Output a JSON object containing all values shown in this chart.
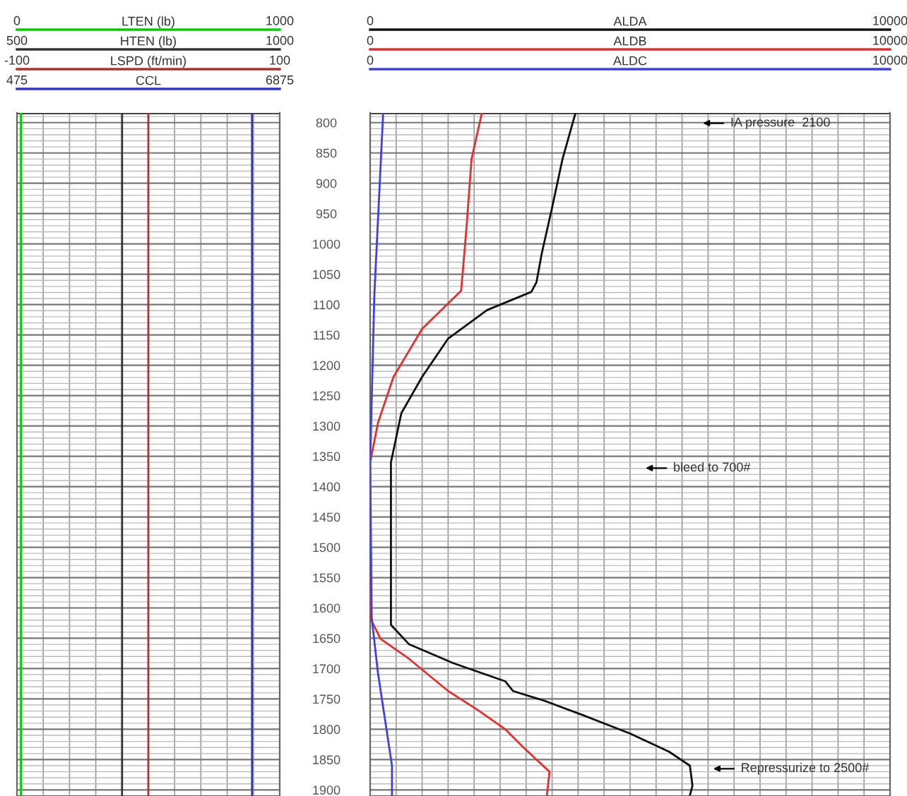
{
  "chart_data": [
    {
      "type": "line",
      "orientation": "horizontal",
      "grid": true,
      "tick_labels": "x",
      "ylim": [
        1910,
        784
      ],
      "yticks": [
        800,
        850,
        900,
        950,
        1000,
        1050,
        1100,
        1150,
        1200,
        1250,
        1300,
        1350,
        1400,
        1450,
        1500,
        1550,
        1600,
        1650,
        1700,
        1750,
        1800,
        1850,
        1900
      ],
      "xlim": [
        0,
        1000
      ],
      "xticks": [
        0,
        {
          "value": 100,
          "label": null
        },
        {
          "value": 200,
          "label": null
        },
        {
          "value": 300,
          "label": null
        },
        {
          "value": 400,
          "label": null
        },
        {
          "value": 500,
          "label": null
        },
        {
          "value": 600,
          "label": null
        },
        {
          "value": 700,
          "label": null
        },
        {
          "value": 800,
          "label": null
        },
        {
          "value": 900,
          "label": null
        },
        1000
      ],
      "series": [
        {
          "name": "LTEN (lb)",
          "color": "#00cc00",
          "x": [
            784,
            1910
          ],
          "values": [
            15,
            15
          ]
        }
      ]
    },
    {
      "type": "line",
      "orientation": "horizontal",
      "tick_labels": "x",
      "ylim": [
        1910,
        784
      ],
      "xlim": [
        500,
        1000
      ],
      "xticks": [
        500,
        1000
      ],
      "series": [
        {
          "name": "HTEN (lb)",
          "color": "#333333",
          "x": [
            784,
            1910
          ],
          "values": [
            700,
            700
          ]
        }
      ]
    },
    {
      "type": "line",
      "orientation": "horizontal",
      "tick_labels": "x",
      "ylim": [
        1910,
        784
      ],
      "xlim": [
        -100,
        100
      ],
      "xticks": [
        -100,
        100
      ],
      "series": [
        {
          "name": "LSPD (ft/min)",
          "color": "#b03030",
          "x": [
            784,
            1910
          ],
          "values": [
            0,
            0
          ]
        }
      ]
    },
    {
      "type": "line",
      "orientation": "horizontal",
      "tick_labels": "x",
      "ylim": [
        1910,
        784
      ],
      "xlim": [
        475,
        6875
      ],
      "xticks": [
        475,
        6875
      ],
      "series": [
        {
          "name": "CCL",
          "color": "#3030d0",
          "x": [
            784,
            1910
          ],
          "values": [
            6200,
            6200
          ]
        }
      ]
    },
    {
      "type": "line",
      "orientation": "horizontal",
      "grid": true,
      "ylim": [
        1910,
        784
      ],
      "yticks": [
        800,
        850,
        900,
        950,
        1000,
        1050,
        1100,
        1150,
        1200,
        1250,
        1300,
        1350,
        1400,
        1450,
        1500,
        1550,
        1600,
        1650,
        1700,
        1750,
        1800,
        1850,
        1900
      ],
      "xlim": [
        0,
        10000
      ],
      "xticks": [
        0,
        {
          "value": 500,
          "label": null
        },
        {
          "value": 1000,
          "label": null
        },
        {
          "value": 1500,
          "label": null
        },
        {
          "value": 2000,
          "label": null
        },
        {
          "value": 2500,
          "label": null
        },
        {
          "value": 3000,
          "label": null
        },
        {
          "value": 3500,
          "label": null
        },
        {
          "value": 4000,
          "label": null
        },
        {
          "value": 4500,
          "label": null
        },
        {
          "value": 5000,
          "label": null
        },
        {
          "value": 5500,
          "label": null
        },
        {
          "value": 6000,
          "label": null
        },
        {
          "value": 6500,
          "label": null
        },
        {
          "value": 7000,
          "label": null
        },
        {
          "value": 7500,
          "label": null
        },
        {
          "value": 8000,
          "label": null
        },
        {
          "value": 8500,
          "label": null
        },
        {
          "value": 9000,
          "label": null
        },
        {
          "value": 9500,
          "label": null
        },
        10000
      ],
      "series": [
        {
          "name": "ALDA",
          "color": "#111111",
          "x": [
            784,
            860,
            940,
            1016,
            1063,
            1079,
            1109,
            1156,
            1219,
            1279,
            1360,
            1628,
            1660,
            1691,
            1721,
            1737,
            1753,
            1777,
            1807,
            1837,
            1860,
            1893,
            1909
          ],
          "values": [
            3950,
            3700,
            3500,
            3300,
            3200,
            3100,
            2250,
            1500,
            1000,
            600,
            400,
            400,
            750,
            1600,
            2600,
            2750,
            3350,
            4100,
            5000,
            5750,
            6150,
            6200,
            6150
          ]
        }
      ],
      "annotations": [
        "IA pressure  2100",
        "bleed to 700#",
        "Repressurize to 2500#"
      ]
    },
    {
      "type": "line",
      "orientation": "horizontal",
      "tick_labels": "x",
      "ylim": [
        1910,
        784
      ],
      "xlim": [
        0,
        10000
      ],
      "xticks": [
        0,
        10000
      ],
      "series": [
        {
          "name": "ALDB",
          "color": "#e03030",
          "x": [
            784,
            860,
            977,
            1077,
            1140,
            1219,
            1295,
            1360,
            1616,
            1651,
            1684,
            1737,
            1767,
            1800,
            1830,
            1870,
            1909
          ],
          "values": [
            2150,
            1950,
            1850,
            1750,
            1000,
            450,
            150,
            0,
            0,
            200,
            750,
            1500,
            2050,
            2600,
            2950,
            3450,
            3400
          ]
        }
      ]
    },
    {
      "type": "line",
      "orientation": "horizontal",
      "tick_labels": "x",
      "ylim": [
        1910,
        784
      ],
      "xlim": [
        0,
        10000
      ],
      "xticks": [
        0,
        10000
      ],
      "series": [
        {
          "name": "ALDC",
          "color": "#4040e0",
          "x": [
            784,
            1086,
            1360,
            1616,
            1707,
            1860,
            1909
          ],
          "values": [
            250,
            80,
            0,
            30,
            150,
            420,
            420
          ]
        }
      ]
    }
  ]
}
